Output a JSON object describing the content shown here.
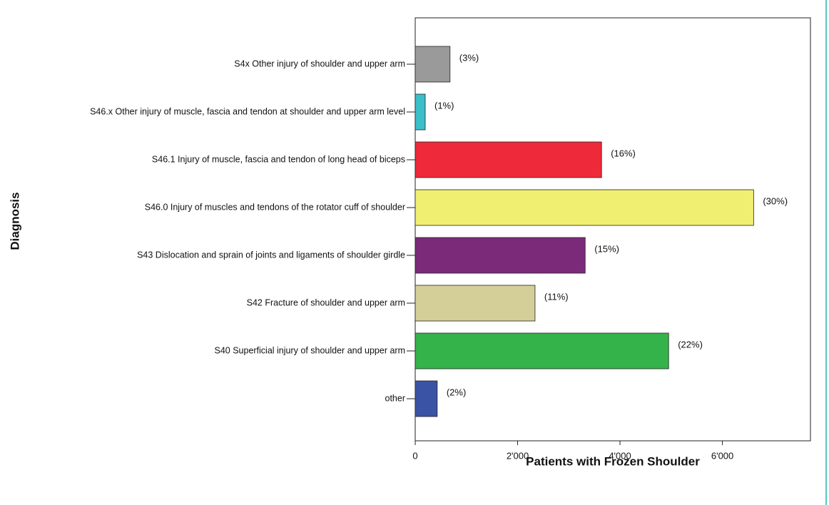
{
  "chart_data": {
    "type": "bar",
    "orientation": "horizontal",
    "y_label": "Diagnosis",
    "x_label": "Patients with Frozen Shoulder",
    "categories": [
      "S4x Other injury of shoulder and upper arm",
      "S46.x Other injury of muscle, fascia and tendon at shoulder and upper arm level",
      "S46.1 Injury of muscle, fascia and tendon of long head of biceps",
      "S46.0 Injury of muscles and tendons of the rotator cuff of shoulder",
      "S43 Dislocation and sprain of joints and ligaments of shoulder girdle",
      "S42 Fracture of shoulder and upper arm",
      "S40 Superficial injury of shoulder and upper arm",
      "other"
    ],
    "values": [
      680,
      195,
      3640,
      6610,
      3320,
      2340,
      4950,
      430
    ],
    "shares": [
      "(3%)",
      "(1%)",
      "(16%)",
      "(30%)",
      "(15%)",
      "(11%)",
      "(22%)",
      "(2%)"
    ],
    "colors": [
      "#9a9a9a",
      "#3bbfc9",
      "#ee2a3a",
      "#f0ef72",
      "#7b2a79",
      "#d4cf99",
      "#34b34a",
      "#3a53a4"
    ],
    "xlim": [
      0,
      7720
    ],
    "xticks": [
      0,
      {
        "value": 2000,
        "label": "2'000"
      },
      {
        "value": 4000,
        "label": "4'000"
      },
      {
        "value": 6000,
        "label": "6'000"
      }
    ]
  }
}
